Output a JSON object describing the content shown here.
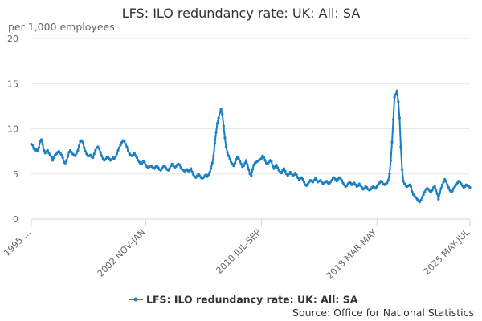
{
  "chart_data": {
    "type": "line",
    "title": "LFS: ILO redundancy rate: UK: All: SA",
    "yunit": "per 1,000 employees",
    "ylim": [
      0,
      20
    ],
    "yticks": [
      0,
      5,
      10,
      15,
      20
    ],
    "grid": true,
    "legend_position": "bottom-center",
    "xtick_labels": [
      "1995 ...",
      "2002 NOV-JAN",
      "2010 JUL-SEP",
      "2018 MAR-MAY",
      "2025 MAY-JUL"
    ],
    "series": [
      {
        "name": "LFS: ILO redundancy rate: UK: All: SA",
        "color": "#1a7fc1",
        "start": "1995 MAR-MAY",
        "end": "2025 MAY-JUL",
        "values": [
          8.3,
          8.2,
          7.8,
          7.6,
          7.7,
          7.5,
          7.9,
          8.6,
          8.8,
          8.3,
          7.6,
          7.3,
          7.5,
          7.6,
          7.3,
          7.1,
          6.9,
          6.5,
          6.8,
          7.1,
          7.2,
          7.4,
          7.5,
          7.3,
          7.1,
          6.8,
          6.3,
          6.2,
          6.5,
          6.9,
          7.4,
          7.6,
          7.4,
          7.2,
          7.1,
          7.0,
          7.3,
          7.6,
          8.1,
          8.6,
          8.7,
          8.5,
          7.9,
          7.5,
          7.2,
          7.0,
          7.0,
          7.1,
          6.9,
          6.8,
          7.2,
          7.6,
          7.9,
          8.0,
          7.8,
          7.4,
          7.0,
          6.7,
          6.5,
          6.6,
          6.8,
          6.9,
          6.7,
          6.5,
          6.6,
          6.8,
          6.7,
          6.9,
          7.2,
          7.6,
          7.9,
          8.2,
          8.5,
          8.7,
          8.6,
          8.3,
          8.0,
          7.6,
          7.3,
          7.1,
          7.0,
          7.1,
          7.3,
          7.0,
          6.8,
          6.5,
          6.3,
          6.1,
          6.2,
          6.4,
          6.3,
          6.0,
          5.8,
          5.7,
          5.8,
          5.9,
          5.8,
          5.7,
          5.6,
          5.8,
          5.9,
          5.7,
          5.5,
          5.4,
          5.6,
          5.8,
          5.9,
          5.7,
          5.5,
          5.4,
          5.6,
          5.9,
          6.1,
          5.9,
          5.7,
          5.8,
          6.0,
          6.1,
          6.0,
          5.7,
          5.5,
          5.4,
          5.3,
          5.4,
          5.5,
          5.3,
          5.4,
          5.6,
          5.2,
          4.9,
          4.7,
          4.6,
          4.8,
          5.0,
          4.8,
          4.6,
          4.5,
          4.6,
          4.8,
          4.9,
          4.7,
          4.9,
          5.2,
          5.6,
          6.2,
          7.0,
          8.4,
          9.6,
          10.6,
          11.2,
          11.8,
          12.2,
          11.6,
          10.3,
          9.0,
          8.0,
          7.4,
          7.0,
          6.6,
          6.3,
          6.1,
          5.9,
          6.2,
          6.6,
          6.9,
          6.7,
          6.4,
          6.1,
          5.8,
          5.9,
          6.2,
          6.5,
          6.0,
          5.5,
          5.0,
          4.8,
          5.5,
          6.0,
          6.2,
          6.3,
          6.4,
          6.5,
          6.6,
          6.7,
          7.0,
          6.9,
          6.5,
          6.2,
          6.1,
          6.3,
          6.5,
          6.4,
          5.9,
          5.6,
          5.8,
          6.0,
          5.7,
          5.4,
          5.2,
          5.1,
          5.4,
          5.6,
          5.3,
          5.0,
          4.8,
          5.0,
          5.2,
          5.0,
          4.8,
          4.9,
          5.1,
          4.9,
          4.6,
          4.4,
          4.5,
          4.6,
          4.4,
          4.1,
          3.8,
          3.7,
          3.9,
          4.1,
          4.3,
          4.2,
          4.1,
          4.3,
          4.5,
          4.3,
          4.1,
          4.2,
          4.3,
          4.1,
          3.9,
          4.0,
          4.1,
          4.2,
          4.0,
          3.9,
          4.1,
          4.3,
          4.5,
          4.6,
          4.4,
          4.2,
          4.4,
          4.6,
          4.5,
          4.3,
          4.0,
          3.8,
          3.6,
          3.7,
          3.9,
          4.1,
          4.0,
          3.8,
          3.9,
          4.0,
          3.8,
          3.6,
          3.7,
          3.9,
          3.7,
          3.5,
          3.3,
          3.4,
          3.6,
          3.5,
          3.3,
          3.2,
          3.3,
          3.5,
          3.6,
          3.5,
          3.4,
          3.6,
          3.8,
          4.0,
          4.2,
          4.1,
          3.9,
          3.8,
          3.9,
          4.0,
          4.3,
          5.0,
          6.5,
          8.5,
          11.0,
          13.5,
          13.8,
          14.2,
          13.0,
          11.2,
          8.0,
          5.5,
          4.2,
          3.9,
          3.7,
          3.6,
          3.7,
          3.8,
          3.6,
          3.0,
          2.7,
          2.5,
          2.4,
          2.2,
          2.0,
          1.9,
          2.1,
          2.4,
          2.7,
          3.0,
          3.3,
          3.4,
          3.3,
          3.1,
          3.0,
          3.2,
          3.5,
          3.6,
          3.2,
          2.8,
          2.2,
          2.9,
          3.4,
          3.8,
          4.1,
          4.4,
          4.2,
          3.8,
          3.5,
          3.2,
          3.0,
          3.1,
          3.4,
          3.6,
          3.8,
          4.0,
          4.2,
          4.1,
          3.9,
          3.7,
          3.5,
          3.6,
          3.8,
          3.7,
          3.6,
          3.5
        ]
      }
    ]
  },
  "legend": {
    "label": "LFS: ILO redundancy rate: UK: All: SA"
  },
  "source": "Source: Office for National Statistics"
}
